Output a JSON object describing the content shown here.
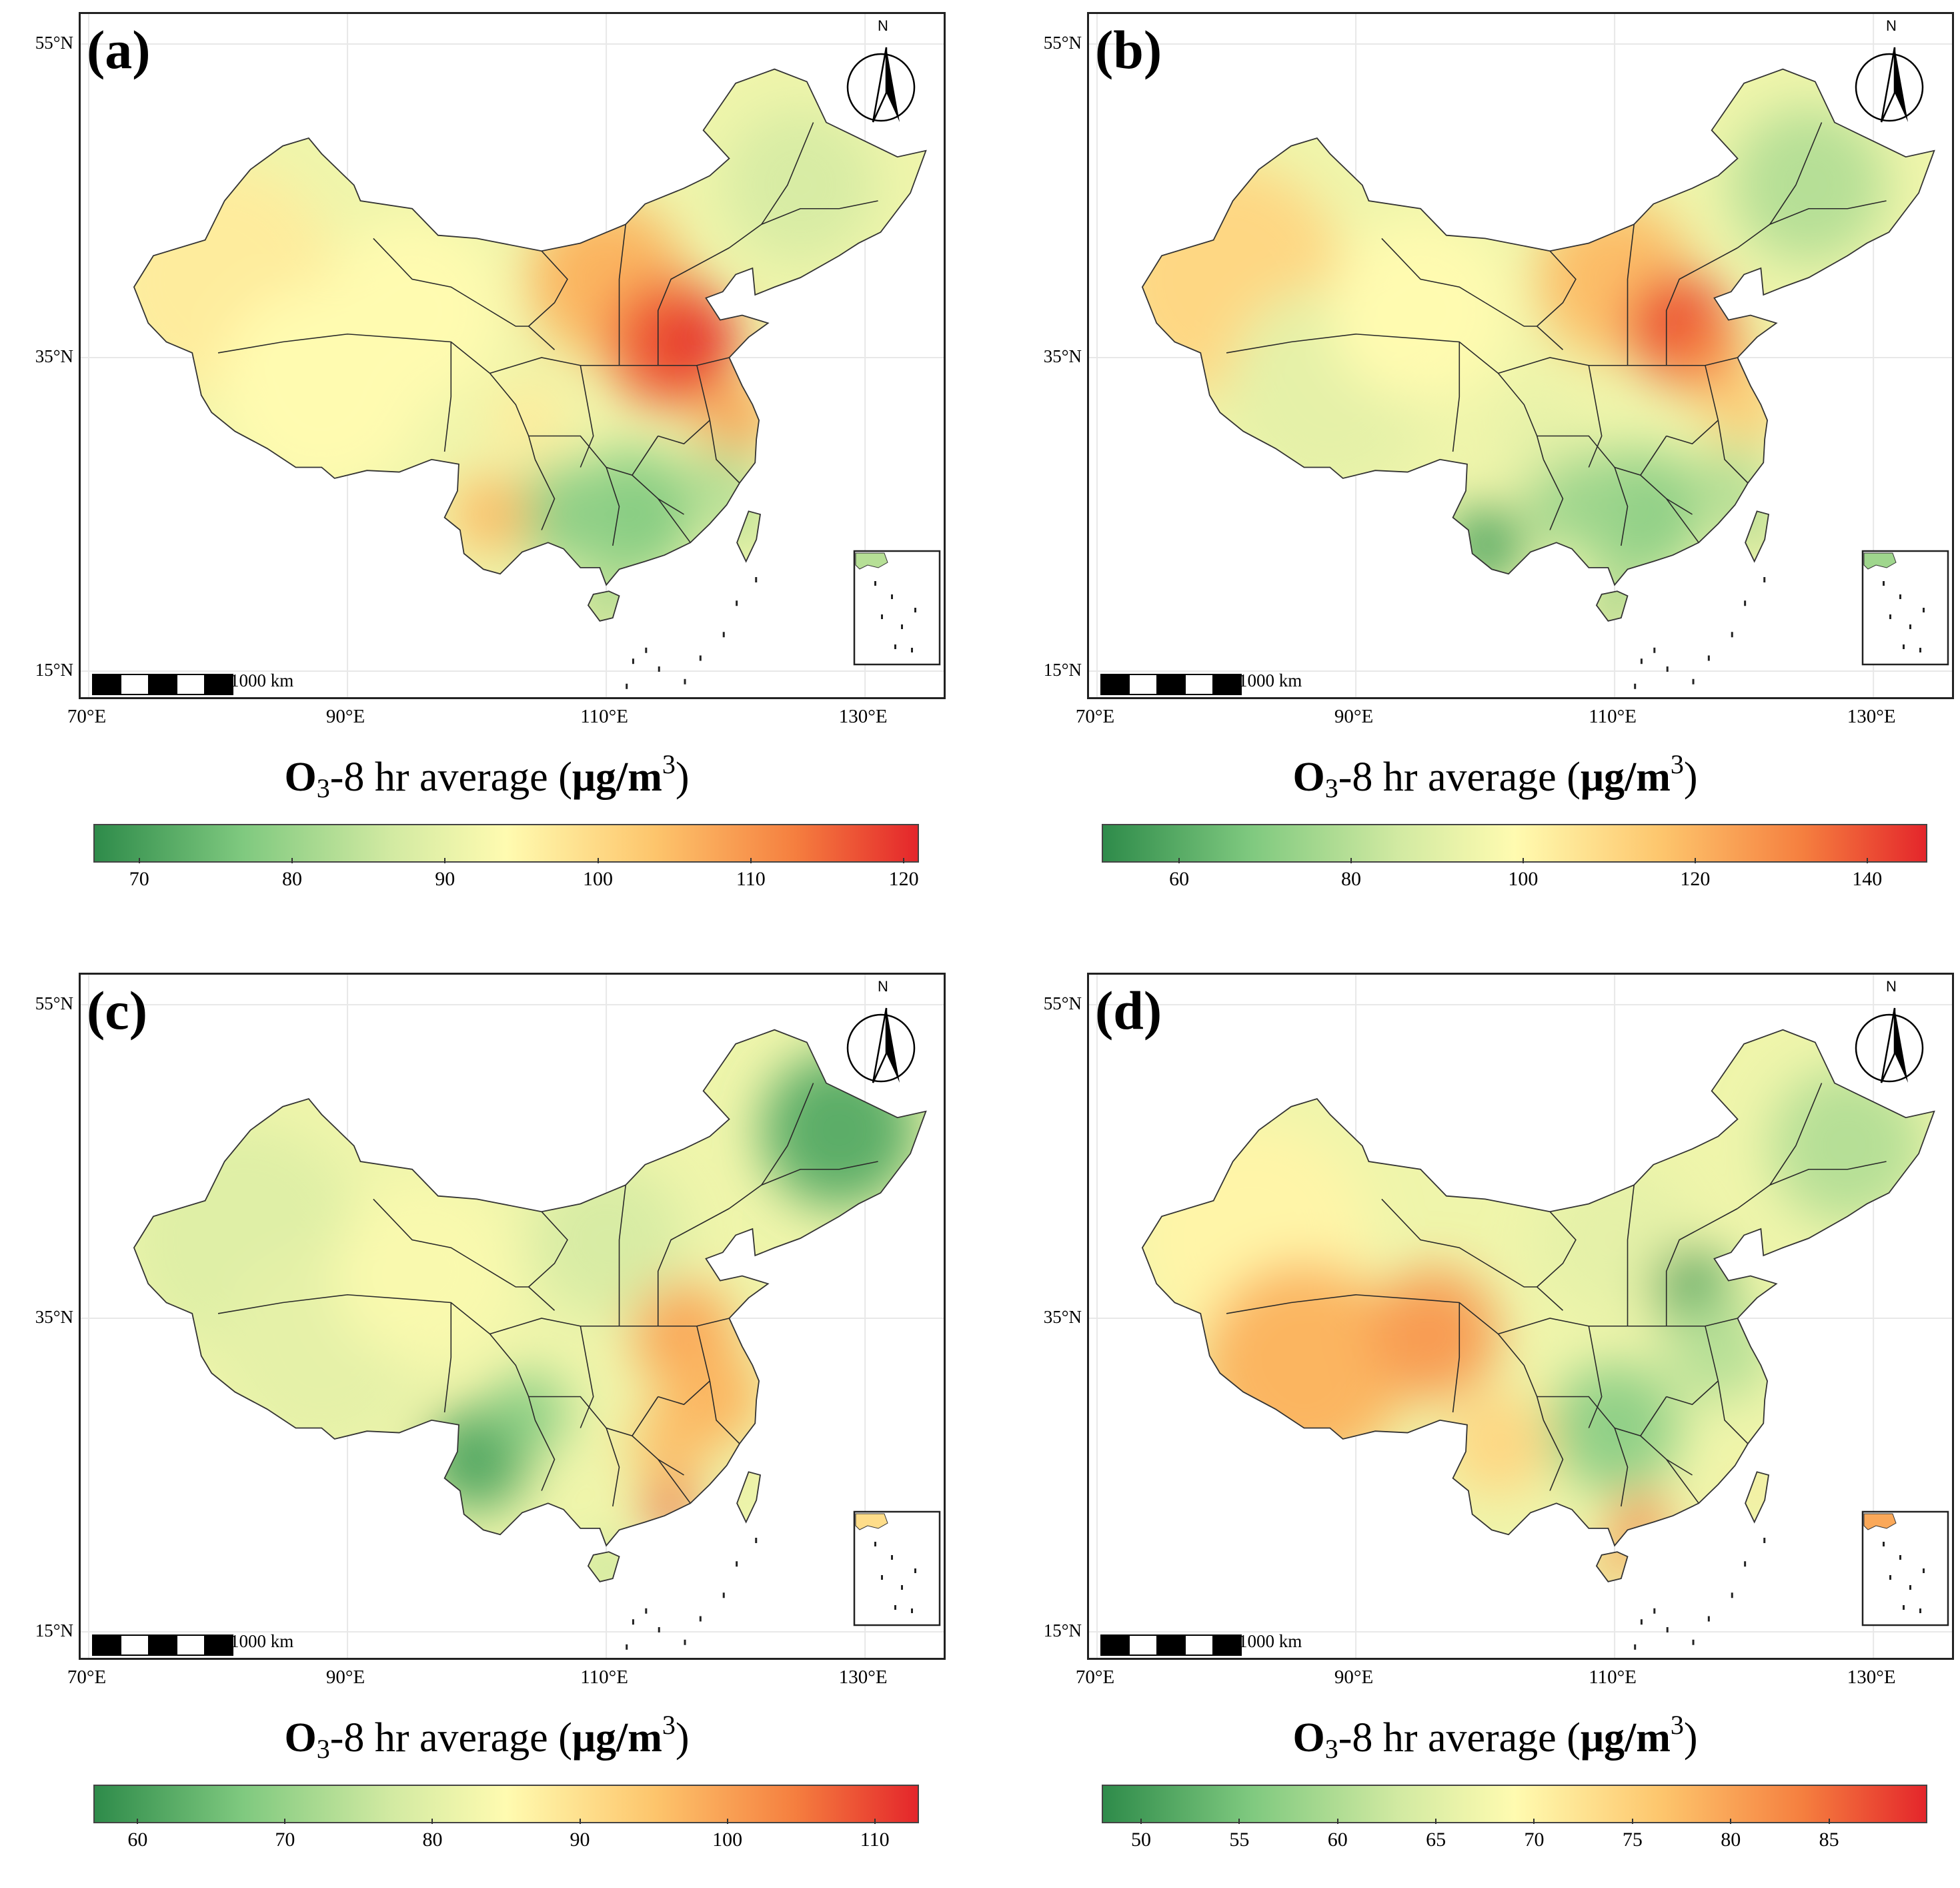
{
  "figure": {
    "legend_title_parts": [
      "O",
      "3",
      "-8 hr average (",
      "μg/m",
      "3",
      ")"
    ],
    "scale_bar_label": "1000 km",
    "north_label": "N",
    "lat_labels": [
      "55°N",
      "35°N",
      "15°N"
    ],
    "lon_labels": [
      "70°E",
      "90°E",
      "110°E",
      "130°E"
    ]
  },
  "colors": {
    "scale_low": "#2e8b4a",
    "scale_mid": "#fffbb0",
    "scale_high": "#e4262b"
  },
  "panels": [
    {
      "label": "(a)",
      "range": [
        67,
        121
      ],
      "ticks": [
        "70",
        "80",
        "90",
        "100",
        "110",
        "120"
      ],
      "tick_values": [
        70,
        80,
        90,
        100,
        110,
        120
      ]
    },
    {
      "label": "(b)",
      "range": [
        51,
        147
      ],
      "ticks": [
        "60",
        "80",
        "100",
        "120",
        "140"
      ],
      "tick_values": [
        60,
        80,
        100,
        120,
        140
      ]
    },
    {
      "label": "(c)",
      "range": [
        57,
        113
      ],
      "ticks": [
        "60",
        "70",
        "80",
        "90",
        "100",
        "110"
      ],
      "tick_values": [
        60,
        70,
        80,
        90,
        100,
        110
      ]
    },
    {
      "label": "(d)",
      "range": [
        48,
        90
      ],
      "ticks": [
        "50",
        "55",
        "60",
        "65",
        "70",
        "75",
        "80",
        "85"
      ],
      "tick_values": [
        50,
        55,
        60,
        65,
        70,
        75,
        80,
        85
      ]
    }
  ]
}
